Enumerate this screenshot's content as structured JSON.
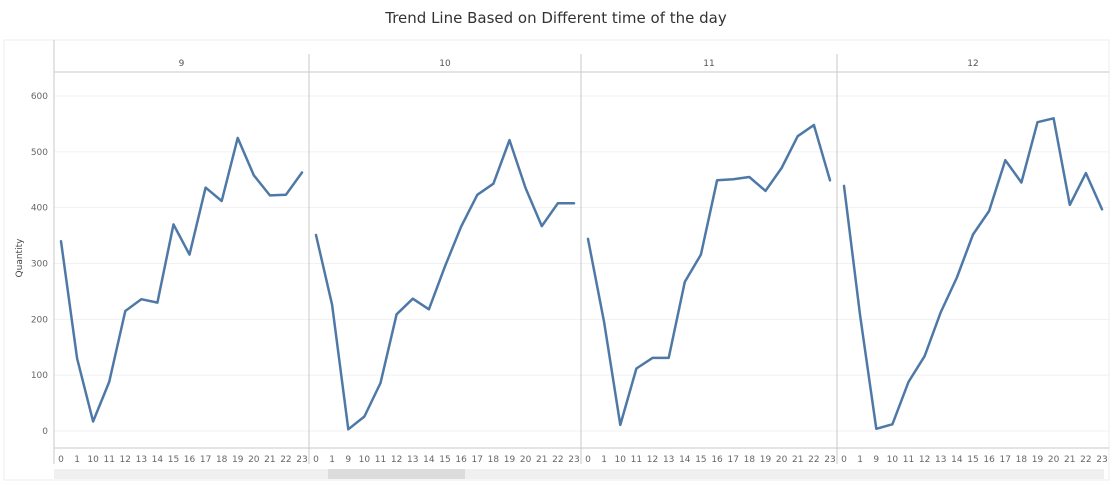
{
  "chart_data": {
    "type": "line",
    "title": "Trend Line Based on Different time of the day",
    "xlabel": "",
    "ylabel": "Quantity",
    "ylim": [
      0,
      650
    ],
    "yticks": [
      0,
      100,
      200,
      300,
      400,
      500,
      600
    ],
    "grid": true,
    "line_color": "#4e79a7",
    "panes": [
      {
        "header": "9",
        "x": [
          "0",
          "1",
          "10",
          "11",
          "12",
          "13",
          "14",
          "15",
          "16",
          "17",
          "18",
          "19",
          "20",
          "21",
          "22",
          "23"
        ],
        "tick_labels": [
          "0",
          "1",
          "10",
          "11",
          "12",
          "13",
          "14",
          "15",
          "16",
          "17",
          "18",
          "19",
          "20",
          "21",
          "22",
          "23"
        ],
        "values": [
          340,
          130,
          17,
          88,
          215,
          236,
          230,
          370,
          316,
          436,
          412,
          525,
          458,
          422,
          423,
          463
        ]
      },
      {
        "header": "10",
        "x": [
          "0",
          "1",
          "9",
          "10",
          "11",
          "12",
          "13",
          "14",
          "15",
          "16",
          "17",
          "18",
          "19",
          "20",
          "21",
          "22",
          "23"
        ],
        "tick_labels": [
          "0",
          "1",
          "9",
          "10",
          "11",
          "12",
          "13",
          "14",
          "15",
          "16",
          "17",
          "18",
          "19",
          "20",
          "21",
          "22",
          "23"
        ],
        "values": [
          351,
          226,
          3,
          26,
          86,
          209,
          237,
          218,
          295,
          366,
          423,
          443,
          521,
          435,
          367,
          408,
          408
        ]
      },
      {
        "header": "11",
        "x": [
          "0",
          "1",
          "10",
          "11",
          "12",
          "13",
          "14",
          "15",
          "16",
          "17",
          "18",
          "19",
          "20",
          "21",
          "22",
          "23"
        ],
        "tick_labels": [
          "0",
          "1",
          "10",
          "11",
          "12",
          "13",
          "14",
          "15",
          "16",
          "17",
          "18",
          "19",
          "20",
          "21",
          "22",
          "23"
        ],
        "values": [
          344,
          195,
          11,
          112,
          131,
          131,
          267,
          316,
          449,
          451,
          455,
          430,
          471,
          528,
          548,
          449
        ]
      },
      {
        "header": "12",
        "x": [
          "0",
          "1",
          "9",
          "10",
          "11",
          "12",
          "13",
          "14",
          "15",
          "16",
          "17",
          "18",
          "19",
          "20",
          "21",
          "22",
          "23"
        ],
        "tick_labels": [
          "0",
          "1",
          "9",
          "10",
          "11",
          "12",
          "13",
          "14",
          "15",
          "16",
          "17",
          "18",
          "19",
          "20",
          "21",
          "22",
          "23"
        ],
        "values": [
          439,
          207,
          4,
          12,
          88,
          134,
          213,
          275,
          352,
          394,
          485,
          445,
          553,
          560,
          405,
          462,
          397
        ]
      }
    ]
  }
}
